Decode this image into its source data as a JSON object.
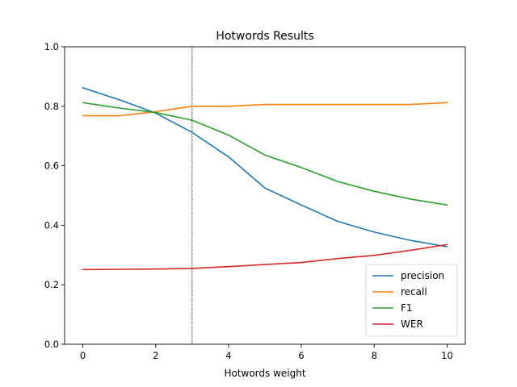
{
  "chart_data": {
    "type": "line",
    "title": "Hotwords Results",
    "xlabel": "Hotwords weight",
    "ylabel": "",
    "xlim": [
      -0.5,
      10.5
    ],
    "ylim": [
      0.0,
      1.0
    ],
    "x_ticks": [
      0,
      2,
      4,
      6,
      8,
      10
    ],
    "x_tick_labels": [
      "0",
      "2",
      "4",
      "6",
      "8",
      "10"
    ],
    "y_ticks": [
      0.0,
      0.2,
      0.4,
      0.6,
      0.8,
      1.0
    ],
    "y_tick_labels": [
      "0.0",
      "0.2",
      "0.4",
      "0.6",
      "0.8",
      "1.0"
    ],
    "grid": false,
    "legend_position": "lower-right",
    "vline": {
      "x": 3,
      "style": "dotted",
      "color": "#000000"
    },
    "x": [
      0,
      1,
      2,
      3,
      4,
      5,
      6,
      7,
      8,
      9,
      10
    ],
    "series": [
      {
        "name": "precision",
        "color": "#1f77b4",
        "values": [
          0.862,
          0.822,
          0.777,
          0.712,
          0.63,
          0.525,
          0.468,
          0.413,
          0.377,
          0.349,
          0.328
        ]
      },
      {
        "name": "recall",
        "color": "#ff7f0e",
        "values": [
          0.768,
          0.768,
          0.782,
          0.8,
          0.8,
          0.806,
          0.806,
          0.806,
          0.806,
          0.806,
          0.812
        ]
      },
      {
        "name": "F1",
        "color": "#2ca02c",
        "values": [
          0.812,
          0.794,
          0.779,
          0.753,
          0.703,
          0.636,
          0.594,
          0.547,
          0.514,
          0.488,
          0.468
        ]
      },
      {
        "name": "WER",
        "color": "#d62728",
        "values": [
          0.251,
          0.252,
          0.253,
          0.255,
          0.261,
          0.268,
          0.275,
          0.288,
          0.299,
          0.316,
          0.335
        ]
      }
    ]
  }
}
